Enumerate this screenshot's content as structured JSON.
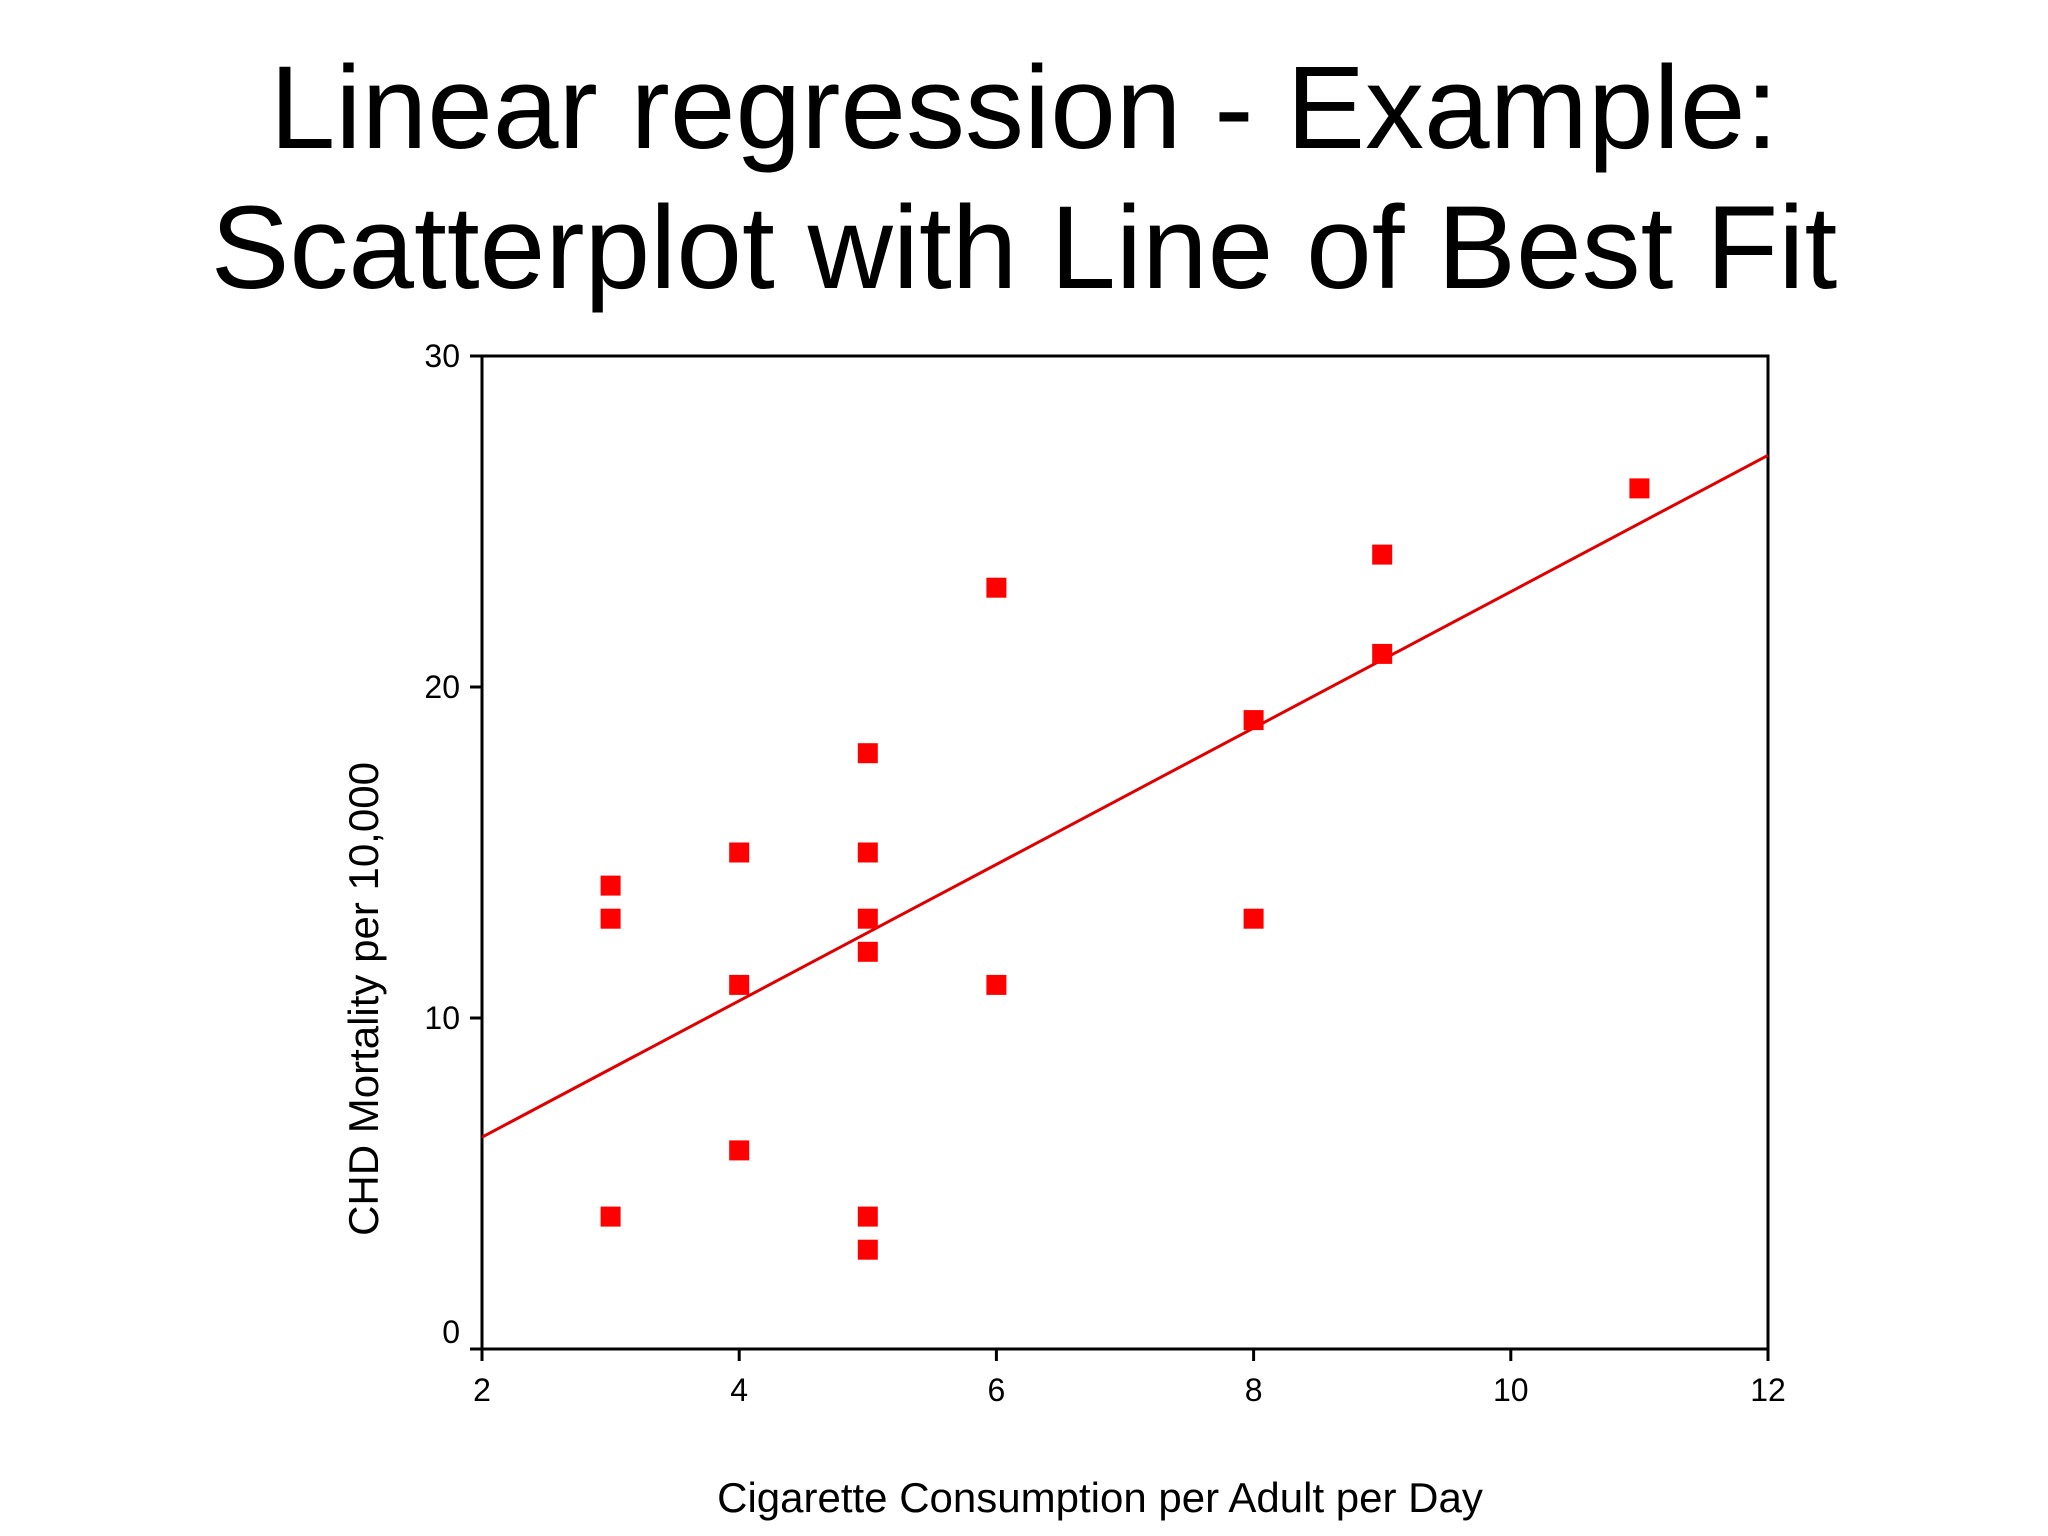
{
  "slide": {
    "title_line1": "Linear regression - Example:",
    "title_line2": "Scatterplot with Line of Best Fit"
  },
  "chart_data": {
    "type": "scatter",
    "xlabel": "Cigarette Consumption per Adult per Day",
    "ylabel": "CHD Mortality per 10,000",
    "xlim": [
      2,
      12
    ],
    "ylim": [
      0,
      30
    ],
    "xticks": [
      2,
      4,
      6,
      8,
      10,
      12
    ],
    "yticks": [
      0,
      10,
      20,
      30
    ],
    "grid": false,
    "marker_color": "#ff0000",
    "line_color": "#e00000",
    "points": [
      {
        "x": 3,
        "y": 14
      },
      {
        "x": 3,
        "y": 13
      },
      {
        "x": 3,
        "y": 4
      },
      {
        "x": 4,
        "y": 15
      },
      {
        "x": 4,
        "y": 11
      },
      {
        "x": 4,
        "y": 6
      },
      {
        "x": 5,
        "y": 18
      },
      {
        "x": 5,
        "y": 15
      },
      {
        "x": 5,
        "y": 13
      },
      {
        "x": 5,
        "y": 12
      },
      {
        "x": 5,
        "y": 4
      },
      {
        "x": 5,
        "y": 3
      },
      {
        "x": 6,
        "y": 23
      },
      {
        "x": 6,
        "y": 11
      },
      {
        "x": 8,
        "y": 19
      },
      {
        "x": 8,
        "y": 13
      },
      {
        "x": 9,
        "y": 24
      },
      {
        "x": 9,
        "y": 21
      },
      {
        "x": 11,
        "y": 26
      }
    ],
    "fit_line": {
      "x": [
        2,
        12
      ],
      "y": [
        6.4,
        27
      ]
    }
  }
}
